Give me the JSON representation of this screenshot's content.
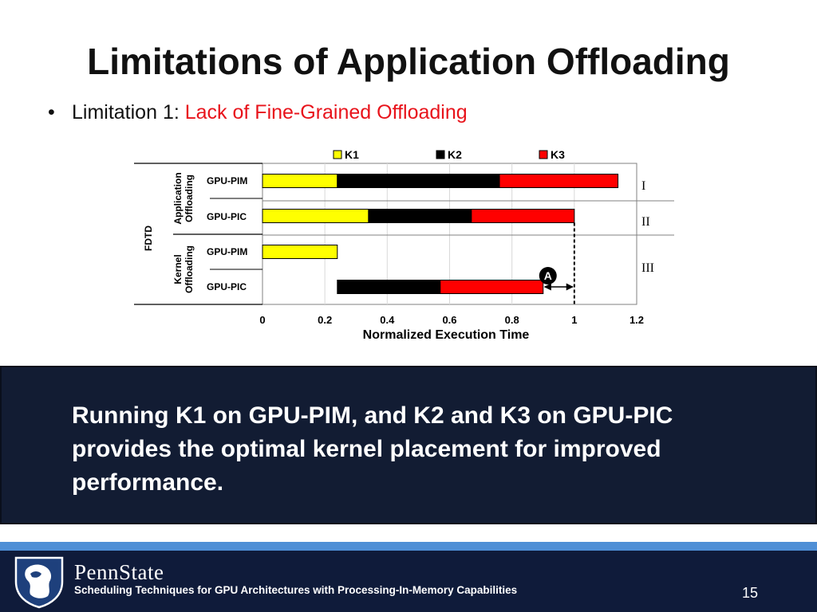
{
  "slide": {
    "title": "Limitations of Application Offloading",
    "bullet_symbol": "•",
    "bullet_prefix": "Limitation 1: ",
    "bullet_highlight": "Lack of Fine-Grained Offloading"
  },
  "chart_data": {
    "type": "bar",
    "orientation": "horizontal",
    "stacked": true,
    "xlabel": "Normalized Execution Time",
    "xlim": [
      0,
      1.2
    ],
    "xticks": [
      "0",
      "0.2",
      "0.4",
      "0.6",
      "0.8",
      "1",
      "1.2"
    ],
    "legend_position": "top",
    "series": [
      {
        "name": "K1",
        "color": "#ffff00"
      },
      {
        "name": "K2",
        "color": "#000000"
      },
      {
        "name": "K3",
        "color": "#ff0000"
      }
    ],
    "outer_group_label": "FDTD",
    "groups": [
      {
        "label": "Application Offloading",
        "lines": [
          "Application",
          "Offloading"
        ]
      },
      {
        "label": "Kernel Offloading",
        "lines": [
          "Kernel",
          "Offloading"
        ]
      }
    ],
    "rows": [
      {
        "label": "GPU-PIM",
        "group": 0,
        "segments": [
          {
            "series": "K1",
            "start": 0,
            "end": 0.24
          },
          {
            "series": "K2",
            "start": 0.24,
            "end": 0.76
          },
          {
            "series": "K3",
            "start": 0.76,
            "end": 1.14
          }
        ]
      },
      {
        "label": "GPU-PIC",
        "group": 0,
        "segments": [
          {
            "series": "K1",
            "start": 0,
            "end": 0.34
          },
          {
            "series": "K2",
            "start": 0.34,
            "end": 0.67
          },
          {
            "series": "K3",
            "start": 0.67,
            "end": 1.0
          }
        ]
      },
      {
        "label": "GPU-PIM",
        "group": 1,
        "segments": [
          {
            "series": "K1",
            "start": 0,
            "end": 0.24
          }
        ]
      },
      {
        "label": "GPU-PIC",
        "group": 1,
        "segments": [
          {
            "series": "K2",
            "start": 0.24,
            "end": 0.57
          },
          {
            "series": "K3",
            "start": 0.57,
            "end": 0.9
          }
        ]
      }
    ],
    "annotations": {
      "roman_labels": [
        "I",
        "II",
        "III"
      ],
      "marker_label": "A",
      "reference_line_x": 1.0,
      "gap_arrow": [
        0.9,
        1.0
      ]
    }
  },
  "callout": {
    "text": "Running K1 on GPU-PIM, and K2 and K3 on GPU-PIC provides the optimal kernel placement for improved performance."
  },
  "footer": {
    "brand": "PennState",
    "subtitle": "Scheduling Techniques for GPU Architectures with Processing-In-Memory Capabilities",
    "page_number": "15",
    "logo_icon": "nittany-lion-shield-icon",
    "stripe_color": "#4f8fd6",
    "background_color": "#0f1b3a"
  },
  "colors": {
    "title_text": "#111111",
    "highlight_red": "#e8131b",
    "callout_background": "#121c33"
  }
}
